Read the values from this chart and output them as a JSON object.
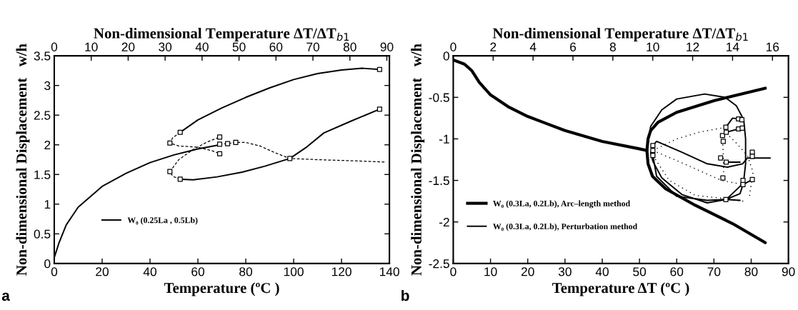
{
  "chart_data": [
    {
      "type": "line",
      "xlabel": "Temperature (ºC )",
      "x2label": "Non-dimensional Temperature ΔT/ΔT$_{b1}$",
      "ylabel": "Non-dimensional Displacement   w/h",
      "xlim": [
        0,
        140
      ],
      "xticks": [
        0,
        20,
        40,
        60,
        80,
        100,
        120,
        140
      ],
      "x2lim": [
        0,
        90.7
      ],
      "x2ticks": [
        0,
        10,
        20,
        30,
        40,
        50,
        60,
        70,
        80,
        90
      ],
      "ylim": [
        0,
        3.5
      ],
      "yticks": [
        0,
        0.5,
        1,
        1.5,
        2,
        2.5,
        3,
        3.5
      ],
      "grid": false,
      "legend": "bottom left",
      "annotations": [
        "a"
      ],
      "series": [
        {
          "name": "W₀ (0.25La , 0.5Lb)",
          "color": "#000000",
          "line_style": "solid",
          "x": [
            0,
            2,
            5,
            10,
            20,
            30,
            40,
            50,
            60,
            69.1
          ],
          "values": [
            0.1,
            0.35,
            0.65,
            0.95,
            1.3,
            1.52,
            1.7,
            1.83,
            1.93,
            2.0
          ]
        },
        {
          "color": "#000000",
          "line_style": "solid",
          "x": [
            52.6,
            60,
            70,
            80,
            90,
            100,
            110,
            120,
            128.6,
            135.9
          ],
          "values": [
            2.21,
            2.42,
            2.62,
            2.8,
            2.96,
            3.1,
            3.2,
            3.26,
            3.29,
            3.27
          ]
        },
        {
          "color": "#000000",
          "line_style": "solid",
          "x": [
            52.6,
            58,
            68,
            78.5,
            88,
            98.4,
            105,
            112.6,
            124,
            135.9
          ],
          "values": [
            1.42,
            1.41,
            1.46,
            1.54,
            1.64,
            1.77,
            1.95,
            2.2,
            2.4,
            2.6
          ]
        },
        {
          "color": "#000000",
          "line_style": "dashed",
          "x": [
            52.6,
            49.5,
            48.3,
            52,
            60,
            66,
            69.1
          ],
          "values": [
            2.21,
            2.12,
            2.03,
            1.98,
            1.96,
            1.9,
            1.85
          ]
        },
        {
          "color": "#000000",
          "line_style": "dashed",
          "x": [
            52.6,
            49.5,
            48.3,
            52,
            58,
            64,
            69.1
          ],
          "values": [
            1.42,
            1.47,
            1.55,
            1.75,
            1.92,
            2.05,
            2.13
          ]
        },
        {
          "color": "#000000",
          "line_style": "dashed",
          "x": [
            69.1,
            72.4,
            75.8,
            80,
            86,
            92,
            98.4,
            110,
            125,
            138.3
          ],
          "values": [
            2.01,
            2.02,
            2.04,
            2.04,
            1.98,
            1.87,
            1.77,
            1.75,
            1.73,
            1.71
          ]
        },
        {
          "type": "scatter",
          "marker": "square",
          "color": "#000000",
          "x": [
            52.6,
            135.9,
            52.6,
            135.9,
            48.3,
            48.3,
            69.1,
            69.1,
            69.1,
            72.4,
            75.8,
            98.4
          ],
          "values": [
            2.21,
            3.27,
            1.42,
            2.6,
            2.03,
            1.55,
            2.13,
            1.85,
            2.01,
            2.02,
            2.04,
            1.77
          ]
        }
      ]
    },
    {
      "type": "line",
      "xlabel": "Temperature ΔT (ºC )",
      "x2label": "Non-dimensional Temperature ΔT/ΔT$_{b1}$",
      "ylabel": "Non-dimensional Displacement   w/h",
      "xlim": [
        0,
        90
      ],
      "xticks": [
        0,
        10,
        20,
        30,
        40,
        50,
        60,
        70,
        80,
        90
      ],
      "x2lim": [
        0,
        16.8
      ],
      "x2ticks": [
        0,
        2,
        4,
        6,
        8,
        10,
        12,
        14,
        16
      ],
      "ylim": [
        -2.5,
        0
      ],
      "yticks": [
        -2.5,
        -2,
        -1.5,
        -1,
        -0.5,
        0
      ],
      "grid": false,
      "legend": "bottom left",
      "annotations": [
        "b"
      ],
      "series": [
        {
          "name": "W₀ (0.3La, 0.2Lb), Arc–length method",
          "color": "#000000",
          "line_style": "solid",
          "x": [
            0,
            3,
            5,
            7,
            10,
            15,
            20,
            30,
            40,
            50,
            52,
            52.3,
            53,
            55,
            60,
            70,
            83.8
          ],
          "values": [
            -0.05,
            -0.1,
            -0.18,
            -0.32,
            -0.47,
            -0.62,
            -0.73,
            -0.9,
            -1.03,
            -1.12,
            -1.14,
            -1.0,
            -0.9,
            -0.8,
            -0.68,
            -0.54,
            -0.39
          ]
        },
        {
          "name": "W₀ (0.3La, 0.2Lb), Perturbation method",
          "color": "#000000",
          "line_style": "solid",
          "x": [
            52,
            53,
            56,
            60,
            67.5,
            73,
            76,
            78,
            78.5,
            78.5,
            78,
            77.5,
            73.3,
            68.2,
            61.4,
            56,
            53.6,
            53
          ],
          "values": [
            -1.14,
            -0.85,
            -0.65,
            -0.52,
            -0.46,
            -0.5,
            -0.6,
            -0.77,
            -1.0,
            -1.3,
            -1.5,
            -1.55,
            -1.73,
            -1.77,
            -1.67,
            -1.47,
            -1.27,
            -1.16
          ]
        },
        {
          "color": "#000000",
          "line_style": "solid",
          "x": [
            52,
            52.3,
            53.5,
            57,
            65,
            75,
            83.8
          ],
          "values": [
            -1.14,
            -1.3,
            -1.45,
            -1.6,
            -1.8,
            -2.02,
            -2.25
          ]
        },
        {
          "color": "#000000",
          "line_style": "solid",
          "x": [
            53.6,
            54.6,
            61.4,
            68.2,
            73.6,
            77.7,
            79,
            85.1
          ],
          "values": [
            -1.08,
            -1.03,
            -1.16,
            -1.3,
            -1.34,
            -1.3,
            -1.23,
            -1.23
          ]
        },
        {
          "color": "#000000",
          "line_style": "solid",
          "x": [
            73.2,
            75,
            76.6,
            77.5
          ],
          "values": [
            -0.86,
            -0.75,
            -0.76,
            -0.77
          ]
        },
        {
          "color": "#000000",
          "line_style": "solid",
          "x": [
            73.3,
            76.6,
            77.6
          ],
          "values": [
            -0.92,
            -0.88,
            -0.87
          ]
        },
        {
          "color": "#000000",
          "line_style": "solid",
          "x": [
            73.3,
            77
          ],
          "values": [
            -1.28,
            -1.28
          ]
        },
        {
          "color": "#000000",
          "line_style": "solid",
          "x": [
            53.6,
            54.6,
            60,
            68.2,
            73.2,
            77,
            77.8,
            80.3
          ],
          "values": [
            -1.2,
            -1.45,
            -1.69,
            -1.74,
            -1.73,
            -1.66,
            -1.55,
            -1.49
          ]
        },
        {
          "color": "#000000",
          "line_style": "solid",
          "x": [
            73.2,
            77
          ],
          "values": [
            -1.73,
            -1.74
          ]
        },
        {
          "color": "#000000",
          "line_style": "dotted",
          "x": [
            53.6,
            60,
            66,
            73.2
          ],
          "values": [
            -1.14,
            -1.0,
            -0.92,
            -0.86
          ]
        },
        {
          "color": "#000000",
          "line_style": "dotted",
          "x": [
            53.6,
            62,
            72,
            77.8
          ],
          "values": [
            -1.14,
            -1.3,
            -1.5,
            -1.55
          ]
        },
        {
          "color": "#000000",
          "line_style": "dotted",
          "x": [
            53.6,
            58,
            65,
            73.2,
            78
          ],
          "values": [
            -1.2,
            -1.5,
            -1.68,
            -1.72,
            -1.75
          ]
        },
        {
          "color": "#000000",
          "line_style": "dotted",
          "x": [
            73.3,
            76,
            79,
            80.5,
            79.5
          ],
          "values": [
            -0.93,
            -1.05,
            -1.2,
            -1.4,
            -1.7
          ]
        },
        {
          "color": "#000000",
          "line_style": "dotted",
          "x": [
            72.3,
            72.5,
            72.6,
            72.4
          ],
          "values": [
            -0.96,
            -1.2,
            -1.4,
            -1.47
          ]
        },
        {
          "type": "scatter",
          "marker": "square",
          "color": "#000000",
          "x": [
            53.6,
            53.6,
            53.6,
            72.3,
            72.5,
            71.8,
            72.4,
            73.2,
            73.3,
            73.3,
            73.2,
            76.6,
            77.5,
            76.6,
            77.6,
            80.3,
            80.3,
            77.8,
            77.8,
            80.3
          ],
          "values": [
            -1.08,
            -1.14,
            -1.2,
            -0.96,
            -1.03,
            -1.23,
            -1.47,
            -0.86,
            -0.92,
            -1.28,
            -1.73,
            -0.76,
            -0.77,
            -0.88,
            -0.87,
            -1.16,
            -1.21,
            -1.5,
            -1.55,
            -1.49
          ]
        }
      ]
    }
  ]
}
